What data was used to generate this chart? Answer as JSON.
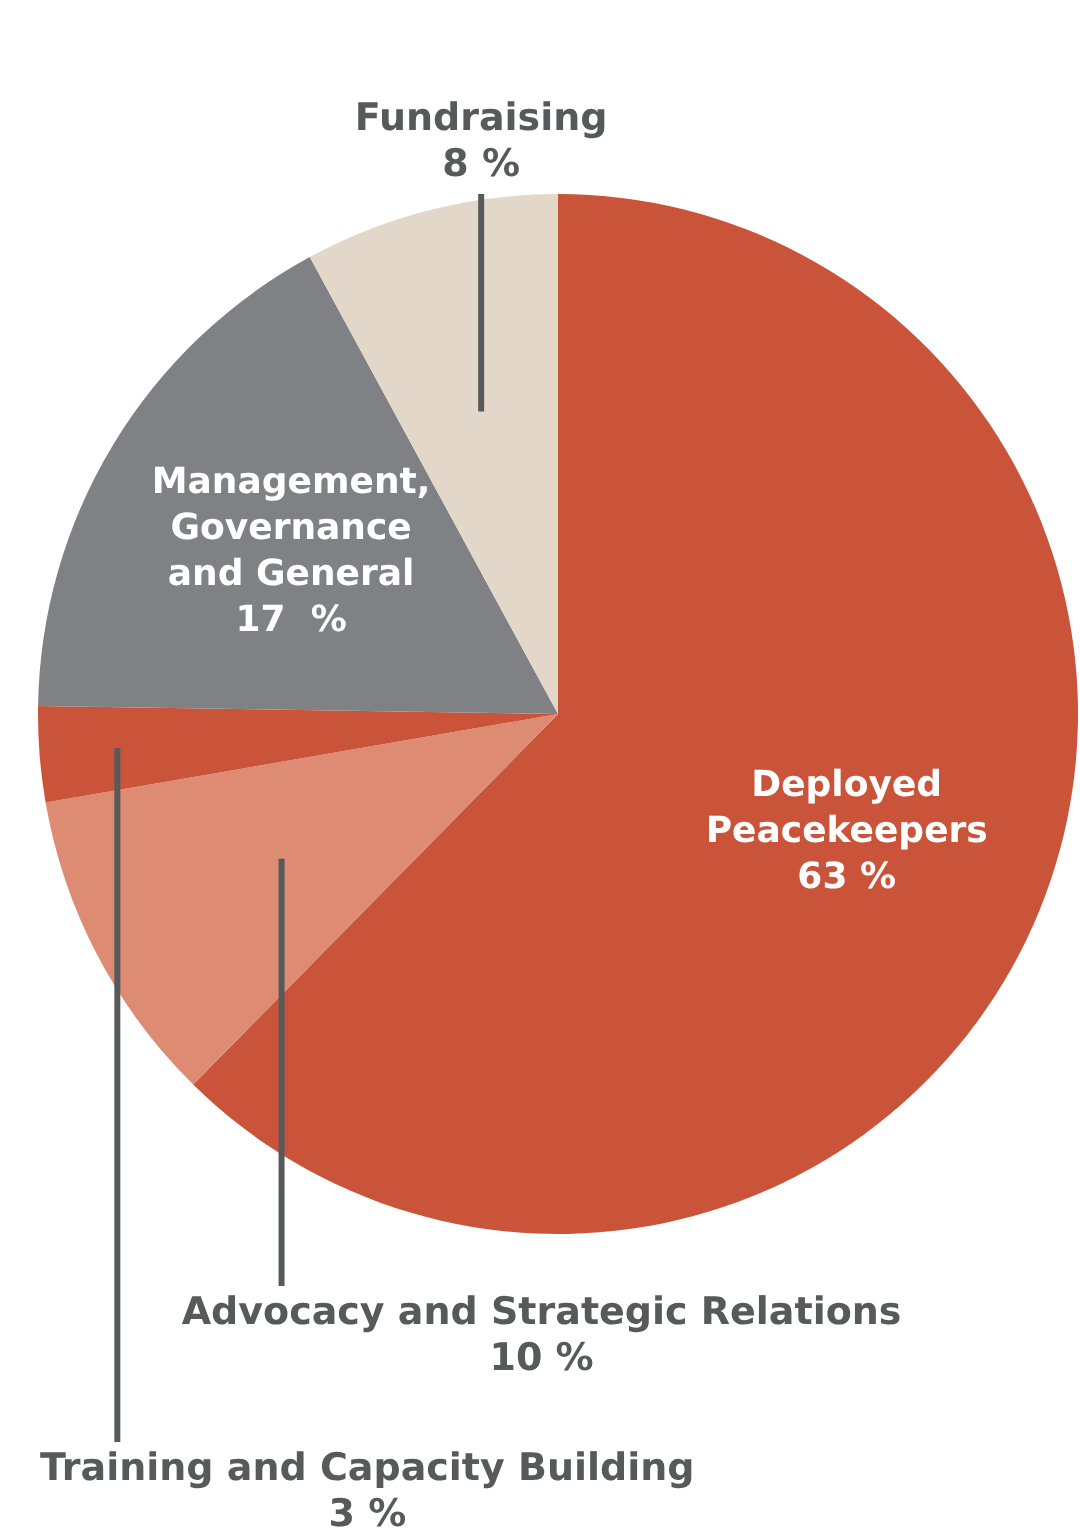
{
  "chart_data": {
    "type": "pie",
    "categories": [
      "Deployed Peacekeepers",
      "Advocacy and Strategic Relations",
      "Training and Capacity Building",
      "Management, Governance and General",
      "Fundraising"
    ],
    "values": [
      63,
      10,
      3,
      17,
      8
    ],
    "colors": [
      "#c9543a",
      "#dd8b73",
      "#c9543a",
      "#808184",
      "#e2d7c8"
    ],
    "value_labels": [
      "63 %",
      "10 %",
      "3 %",
      "17  %",
      "8 %"
    ],
    "legend": false
  }
}
